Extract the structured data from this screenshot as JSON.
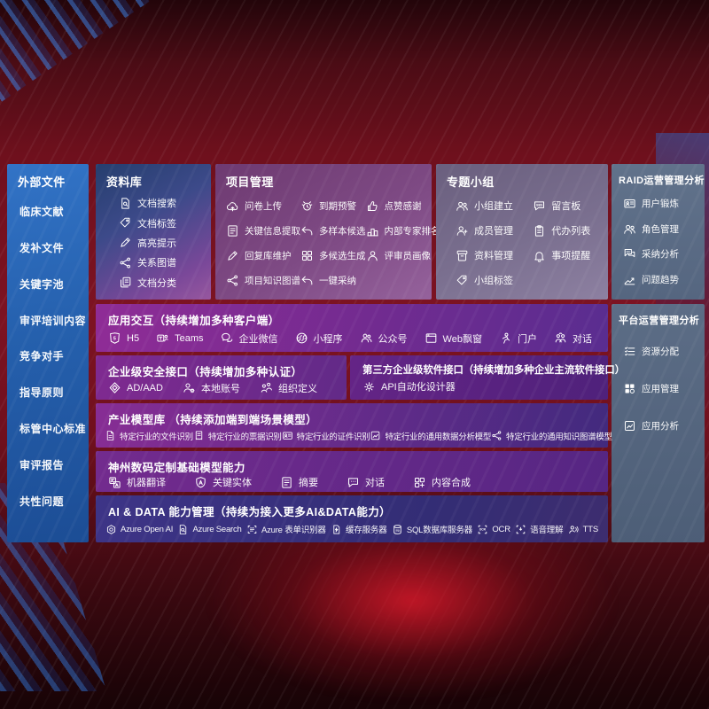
{
  "colors": {
    "background_red": "#7d1322",
    "sidebar_blue": "#2a66b8",
    "panel_slate": "#5d6f85",
    "band_purple": "#7d2f8f",
    "aidata_indigo": "#3a3183",
    "text": "#ffffff"
  },
  "sidebar": {
    "title": "外部文件",
    "items": [
      {
        "label": "临床文献"
      },
      {
        "label": "发补文件"
      },
      {
        "label": "关键字池"
      },
      {
        "label": "审评培训内容"
      },
      {
        "label": "竞争对手"
      },
      {
        "label": "指导原则"
      },
      {
        "label": "标管中心标准"
      },
      {
        "label": "审评报告"
      },
      {
        "label": "共性问题"
      }
    ]
  },
  "repository": {
    "title": "资料库",
    "items": [
      {
        "icon": "doc-search",
        "label": "文档搜索"
      },
      {
        "icon": "tag",
        "label": "文档标签"
      },
      {
        "icon": "pen",
        "label": "高亮提示"
      },
      {
        "icon": "network",
        "label": "关系图谱"
      },
      {
        "icon": "docs",
        "label": "文档分类"
      }
    ]
  },
  "project": {
    "title": "项目管理",
    "items": [
      {
        "icon": "cloud-upload",
        "label": "问卷上传"
      },
      {
        "icon": "alarm",
        "label": "到期预警"
      },
      {
        "icon": "thumbs-up",
        "label": "点赞感谢"
      },
      {
        "icon": "doc-lines",
        "label": "关键信息提取"
      },
      {
        "icon": "reply-arrow",
        "label": "多样本候选"
      },
      {
        "icon": "podium",
        "label": "内部专家排名"
      },
      {
        "icon": "pen",
        "label": "回复库维护"
      },
      {
        "icon": "grid4",
        "label": "多候选生成"
      },
      {
        "icon": "person",
        "label": "评审员画像"
      },
      {
        "icon": "network",
        "label": "项目知识图谱"
      },
      {
        "icon": "reply-arrow",
        "label": "一键采纳"
      }
    ]
  },
  "group": {
    "title": "专题小组",
    "items": [
      {
        "icon": "people",
        "label": "小组建立"
      },
      {
        "icon": "bbs-chat",
        "label": "留言板"
      },
      {
        "icon": "person-add",
        "label": "成员管理"
      },
      {
        "icon": "clipboard",
        "label": "代办列表"
      },
      {
        "icon": "archive",
        "label": "资料管理"
      },
      {
        "icon": "bell",
        "label": "事项提醒"
      },
      {
        "icon": "tag",
        "label": "小组标签"
      }
    ]
  },
  "raid": {
    "title": "RAID运营管理分析",
    "items": [
      {
        "icon": "id-card",
        "label": "用户锻炼"
      },
      {
        "icon": "people",
        "label": "角色管理"
      },
      {
        "icon": "chat-qa",
        "label": "采纳分析"
      },
      {
        "icon": "trend",
        "label": "问题趋势"
      }
    ]
  },
  "platform": {
    "title": "平台运营管理分析",
    "items": [
      {
        "icon": "checklist",
        "label": "资源分配"
      },
      {
        "icon": "app-grid",
        "label": "应用管理"
      },
      {
        "icon": "image-chart",
        "label": "应用分析"
      }
    ]
  },
  "interaction": {
    "title": "应用交互（持续增加多种客户端）",
    "items": [
      {
        "icon": "h5",
        "label": "H5"
      },
      {
        "icon": "teams",
        "label": "Teams"
      },
      {
        "icon": "wechat",
        "label": "企业微信"
      },
      {
        "icon": "miniprogram",
        "label": "小程序"
      },
      {
        "icon": "official",
        "label": "公众号"
      },
      {
        "icon": "window",
        "label": "Web飘窗"
      },
      {
        "icon": "portal",
        "label": "门户"
      },
      {
        "icon": "dialog",
        "label": "对话"
      }
    ]
  },
  "security": {
    "title": "企业级安全接口（持续增加多种认证）",
    "items": [
      {
        "icon": "ad-shield",
        "label": "AD/AAD"
      },
      {
        "icon": "person-gear",
        "label": "本地账号"
      },
      {
        "icon": "org-people",
        "label": "组织定义"
      }
    ]
  },
  "thirdparty": {
    "title": "第三方企业级软件接口（持续增加多种企业主流软件接口）",
    "items": [
      {
        "icon": "gear",
        "label": "API自动化设计器"
      }
    ]
  },
  "industry": {
    "title": "产业模型库 （持续添加端到端场景模型）",
    "items": [
      {
        "icon": "doc",
        "label": "特定行业的文件识别"
      },
      {
        "icon": "receipt",
        "label": "特定行业的票据识别"
      },
      {
        "icon": "id-card",
        "label": "特定行业的证件识别"
      },
      {
        "icon": "image-chart",
        "label": "特定行业的通用数据分析模型"
      },
      {
        "icon": "network",
        "label": "特定行业的通用知识图谱模型"
      }
    ]
  },
  "foundation": {
    "title": "神州数码定制基础模型能力",
    "items": [
      {
        "icon": "translate",
        "label": "机器翻译"
      },
      {
        "icon": "shield-a",
        "label": "关键实体"
      },
      {
        "icon": "doc-lines",
        "label": "摘要"
      },
      {
        "icon": "chat-dots",
        "label": "对话"
      },
      {
        "icon": "grid-plus",
        "label": "内容合成"
      }
    ]
  },
  "aidata": {
    "title": "AI & DATA 能力管理（持续为接入更多AI&DATA能力）",
    "items": [
      {
        "icon": "openai",
        "label": "Azure Open AI"
      },
      {
        "icon": "doc-search",
        "label": "Azure Search"
      },
      {
        "icon": "form-scan",
        "label": "Azure 表单识别器"
      },
      {
        "icon": "cache",
        "label": "缓存服务器"
      },
      {
        "icon": "database",
        "label": "SQL数据库服务器"
      },
      {
        "icon": "ocr",
        "label": "OCR"
      },
      {
        "icon": "speech",
        "label": "语音理解"
      },
      {
        "icon": "tts",
        "label": "TTS"
      }
    ]
  }
}
